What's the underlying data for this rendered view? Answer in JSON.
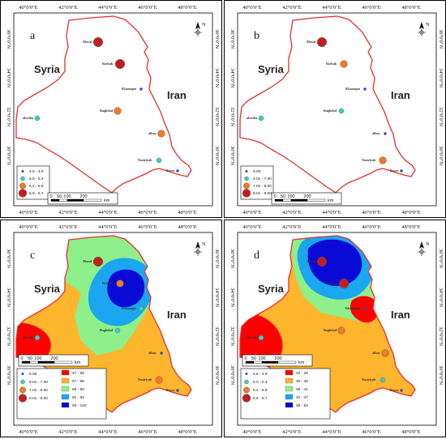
{
  "figure": {
    "lon_labels": [
      "40°0'0\"E",
      "42°0'0\"E",
      "44°0'0\"E",
      "46°0'0\"E",
      "48°0'0\"E"
    ],
    "lat_labels": [
      "36°0'0\"N",
      "34°0'0\"N",
      "32°0'0\"N",
      "30°0'0\"N"
    ],
    "countries": {
      "syria": "Syria",
      "iran": "Iran"
    },
    "scale": {
      "ticks": [
        "0",
        "50",
        "100",
        "200"
      ],
      "unit": "km"
    },
    "north": "N"
  },
  "cities": {
    "mosul": "Mosul",
    "kirkuk": "Kirkuk",
    "khanaqin": "Khanaqin",
    "baghdad": "Baghdad",
    "alrutba": "alrutba",
    "alhay": "alhay",
    "nasiriyah": "Nasiriyah",
    "basra": "Basra"
  },
  "panels": [
    {
      "id": "a",
      "label": "a",
      "point_legend": [
        "4.6 - 4.9",
        "5.0 - 5.3",
        "5.4 - 5.8",
        "5.9 - 6.7"
      ],
      "points": {
        "mosul": 3,
        "kirkuk": 3,
        "khanaqin": 0,
        "baghdad": 2,
        "alrutba": 1,
        "alhay": 2,
        "nasiriyah": 1,
        "basra": 0
      }
    },
    {
      "id": "b",
      "label": "b",
      "point_legend": [
        "6.00",
        "6.01 - 7.00",
        "7.01 - 8.00",
        "8.01 - 9.00"
      ],
      "points": {
        "mosul": 3,
        "kirkuk": 2,
        "khanaqin": 0,
        "baghdad": 1,
        "alrutba": 1,
        "alhay": 0,
        "nasiriyah": 2,
        "basra": 0
      }
    },
    {
      "id": "c",
      "label": "c",
      "point_legend": [
        "6.00",
        "6.01 - 7.00",
        "7.01 - 8.00",
        "8.01 - 9.00"
      ],
      "surface_legend": [
        "47 - 56",
        "57 - 68",
        "69 - 80",
        "81 - 92",
        "93 - 120"
      ],
      "points": {
        "mosul": 3,
        "kirkuk": 2,
        "khanaqin": 1,
        "baghdad": 1,
        "alrutba": 1,
        "alhay": 0,
        "nasiriyah": 2,
        "basra": 0
      }
    },
    {
      "id": "d",
      "label": "d",
      "point_legend": [
        "4.6 - 4.9",
        "5.0 - 5.3",
        "5.4 - 5.8",
        "5.9 - 6.7"
      ],
      "surface_legend": [
        "22 - 29",
        "30 - 35",
        "36 - 41",
        "42 - 47",
        "48 - 53"
      ],
      "points": {
        "mosul": 3,
        "kirkuk": 3,
        "khanaqin": 0,
        "baghdad": 2,
        "alrutba": 1,
        "alhay": 2,
        "nasiriyah": 1,
        "basra": 0
      }
    }
  ],
  "colors": {
    "border": "#e03030",
    "point_classes": [
      "#1f4fd6",
      "#3ccfc0",
      "#f07a2a",
      "#c21f1f"
    ],
    "surface_c": [
      "#ff0000",
      "#ffb52e",
      "#8ef08a",
      "#1aa7f0",
      "#0a0ad6"
    ],
    "surface_d": [
      "#ff0000",
      "#ffb52e",
      "#8ef08a",
      "#1aa7f0",
      "#0a0ad6"
    ]
  }
}
